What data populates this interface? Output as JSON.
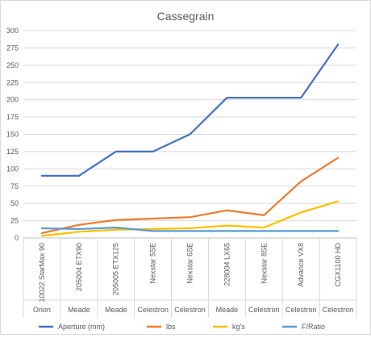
{
  "chart_data": {
    "type": "line",
    "title": "Cassegrain",
    "xlabel": "",
    "ylabel": "",
    "ylim": [
      0,
      300
    ],
    "yticks": [
      0,
      25,
      50,
      75,
      100,
      125,
      150,
      175,
      200,
      225,
      250,
      275,
      300
    ],
    "grid": true,
    "legend_position": "bottom",
    "categories": [
      {
        "model": "10022 StarMax 90",
        "brand": "Orion"
      },
      {
        "model": "205004 ETX90",
        "brand": "Meade"
      },
      {
        "model": "205005 ETX125",
        "brand": "Meade"
      },
      {
        "model": "Nexstar 5SE",
        "brand": "Celestron"
      },
      {
        "model": "Nexstar 6SE",
        "brand": "Celestron"
      },
      {
        "model": "228004 LX65",
        "brand": "Meade"
      },
      {
        "model": "Nexstar 8SE",
        "brand": "Celestron"
      },
      {
        "model": "Advance VX8",
        "brand": "Celestron"
      },
      {
        "model": "CGX1100 HD",
        "brand": "Celestron"
      }
    ],
    "series": [
      {
        "name": "Aperture (mm)",
        "color": "#4472c4",
        "values": [
          90,
          90,
          125,
          125,
          150,
          203,
          203,
          203,
          280
        ]
      },
      {
        "name": "lbs",
        "color": "#ed7d31",
        "values": [
          7,
          19,
          26,
          28,
          30,
          40,
          33,
          82,
          116
        ]
      },
      {
        "name": "kg's",
        "color": "#ffc000",
        "values": [
          3,
          9,
          12,
          13,
          14,
          18,
          15,
          37,
          53
        ]
      },
      {
        "name": "F/Ratio",
        "color": "#5b9bd5",
        "values": [
          14,
          13,
          15,
          10,
          10,
          10,
          10,
          10,
          10
        ]
      }
    ]
  }
}
